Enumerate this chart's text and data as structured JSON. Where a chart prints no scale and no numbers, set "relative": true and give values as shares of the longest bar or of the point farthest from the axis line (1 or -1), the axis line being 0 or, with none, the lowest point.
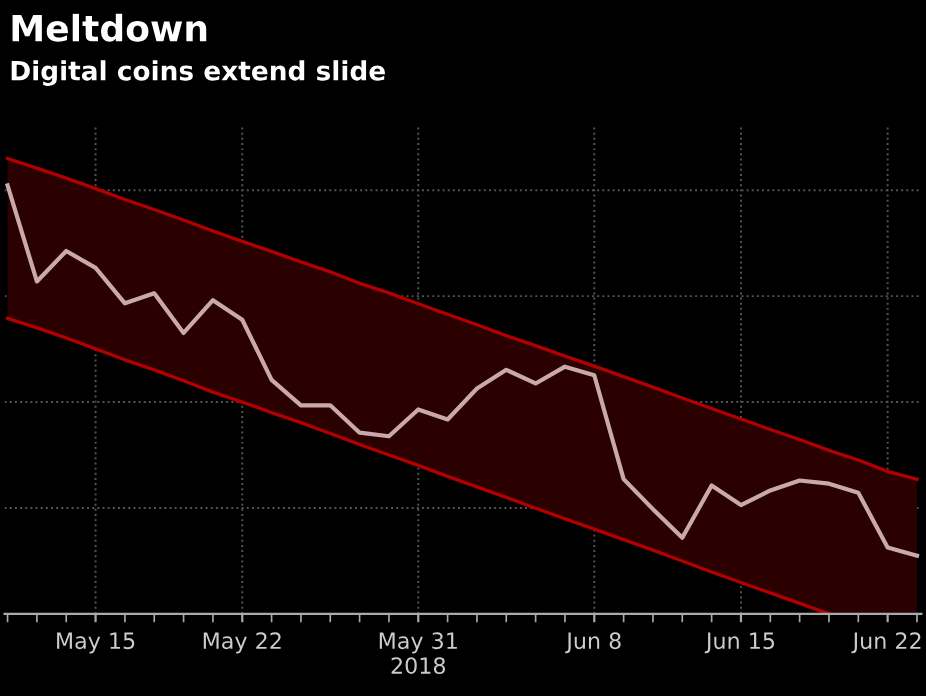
{
  "chart_data": {
    "type": "line",
    "title": "Meltdown",
    "subtitle": "Digital coins extend slide",
    "relative": true,
    "grid": true,
    "legend": false,
    "categories": [
      null,
      null,
      null,
      "May 15",
      null,
      null,
      null,
      null,
      "May 22",
      null,
      null,
      null,
      null,
      null,
      "May 31\n2018",
      null,
      null,
      null,
      null,
      null,
      "Jun 8",
      null,
      null,
      null,
      null,
      "Jun 15",
      null,
      null,
      null,
      null,
      "Jun 22",
      null
    ],
    "series": [
      {
        "color": "#c9a9a9",
        "values": [
          0.941,
          0.73,
          0.797,
          0.76,
          0.682,
          0.704,
          0.617,
          0.689,
          0.646,
          0.514,
          0.458,
          0.458,
          0.398,
          0.39,
          0.449,
          0.427,
          0.495,
          0.536,
          0.506,
          0.543,
          0.524,
          0.296,
          0.23,
          0.167,
          0.282,
          0.239,
          0.271,
          0.293,
          0.286,
          0.266,
          0.146,
          0.128
        ],
        "upper": [
          1,
          0.979,
          0.957,
          0.934,
          0.91,
          0.888,
          0.865,
          0.841,
          0.818,
          0.796,
          0.773,
          0.751,
          0.726,
          0.705,
          0.681,
          0.658,
          0.635,
          0.611,
          0.589,
          0.566,
          0.544,
          0.521,
          0.498,
          0.474,
          0.451,
          0.428,
          0.405,
          0.383,
          0.359,
          0.338,
          0.313,
          0.296
        ],
        "lower": [
          0.649,
          0.628,
          0.606,
          0.582,
          0.558,
          0.536,
          0.512,
          0.487,
          0.465,
          0.442,
          0.42,
          0.396,
          0.372,
          0.349,
          0.326,
          0.302,
          0.279,
          0.256,
          0.232,
          0.209,
          0.186,
          0.163,
          0.14,
          0.116,
          0.092,
          0.069,
          0.046,
          0.023,
          0,
          0,
          0,
          0
        ]
      },
      {
        "color": "#b00000",
        "values": [
          1,
          0.979,
          0.957,
          0.934,
          0.91,
          0.888,
          0.865,
          0.841,
          0.818,
          0.796,
          0.773,
          0.751,
          0.726,
          0.705,
          0.681,
          0.658,
          0.635,
          0.611,
          0.589,
          0.566,
          0.544,
          0.521,
          0.498,
          0.474,
          0.451,
          0.428,
          0.405,
          0.383,
          0.359,
          0.338,
          0.313,
          0.296
        ]
      },
      {
        "color": "#b00000",
        "values": [
          0.649,
          0.628,
          0.606,
          0.582,
          0.558,
          0.536,
          0.512,
          0.487,
          0.465,
          0.442,
          0.42,
          0.396,
          0.372,
          0.349,
          0.326,
          0.302,
          0.279,
          0.256,
          0.232,
          0.209,
          0.186,
          0.163,
          0.14,
          0.116,
          0.092,
          0.069,
          0.046,
          0.023,
          0,
          null,
          null,
          null
        ]
      }
    ]
  }
}
